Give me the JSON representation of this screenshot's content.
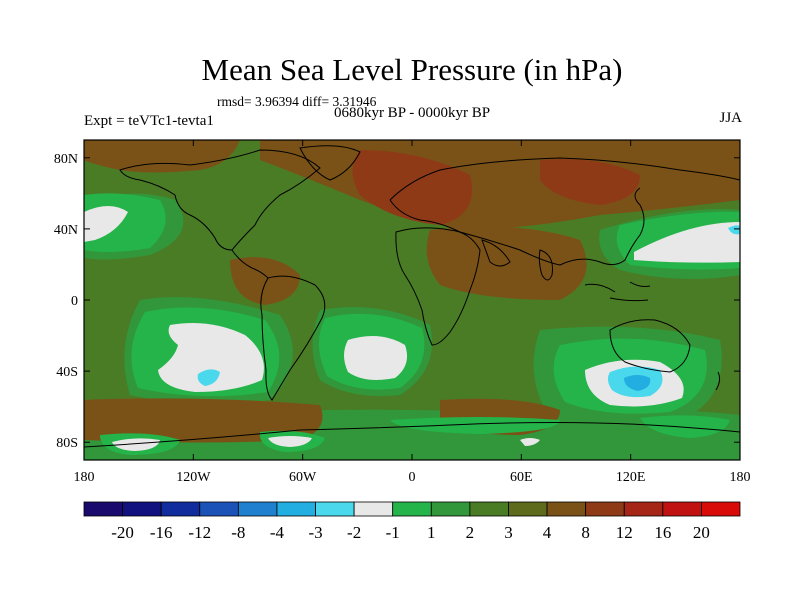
{
  "title": "Mean Sea Level Pressure (in hPa)",
  "stats_line": "rmsd= 3.96394 diff= 3.31946",
  "subtitle": "0680kyr BP - 0000kyr BP",
  "experiment_label": "Expt = teVTc1-tevta1",
  "season": "JJA",
  "map": {
    "projection": "cylindrical equidistant",
    "lon_range": [
      -180,
      180
    ],
    "lat_range": [
      -90,
      90
    ],
    "x_ticks": [
      {
        "label": "180",
        "lon": -180
      },
      {
        "label": "120W",
        "lon": -120
      },
      {
        "label": "60W",
        "lon": -60
      },
      {
        "label": "0",
        "lon": 0
      },
      {
        "label": "60E",
        "lon": 60
      },
      {
        "label": "120E",
        "lon": 120
      },
      {
        "label": "180",
        "lon": 180
      }
    ],
    "y_ticks": [
      {
        "label": "80N",
        "lat": 80
      },
      {
        "label": "40N",
        "lat": 40
      },
      {
        "label": "0",
        "lat": 0
      },
      {
        "label": "40S",
        "lat": -40
      },
      {
        "label": "80S",
        "lat": -80
      }
    ]
  },
  "colorbar": {
    "colors": [
      "#1a0a6e",
      "#11127f",
      "#112c9c",
      "#1a52b8",
      "#1e80cf",
      "#22aee0",
      "#4ad8ec",
      "#e8e8e8",
      "#24b44a",
      "#31973a",
      "#4a7c26",
      "#5e6b1c",
      "#7a5217",
      "#8e3a17",
      "#a52516",
      "#c01210",
      "#d80b08"
    ],
    "labels": [
      "-20",
      "-16",
      "-12",
      "-8",
      "-4",
      "-3",
      "-2",
      "-1",
      "1",
      "2",
      "3",
      "4",
      "8",
      "12",
      "16",
      "20"
    ]
  }
}
